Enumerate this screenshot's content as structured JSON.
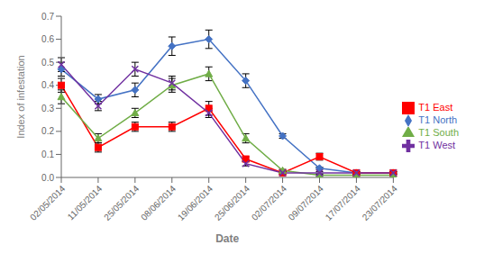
{
  "chart_data": {
    "type": "line",
    "xlabel": "Date",
    "ylabel": "Index of infestation",
    "categories": [
      "02/05/2014",
      "11/05/2014",
      "25/05/2014",
      "08/06/2014",
      "19/06/2014",
      "25/06/2014",
      "02/07/2014",
      "09/07/2014",
      "17/07/2014",
      "23/07/2014"
    ],
    "series": [
      {
        "name": "T1 North",
        "color": "#4472C4",
        "marker": "diamond",
        "values": [
          0.47,
          0.34,
          0.38,
          0.57,
          0.6,
          0.42,
          0.18,
          0.04,
          0.02,
          0.02
        ],
        "errors": [
          0.03,
          0.02,
          0.03,
          0.04,
          0.04,
          0.03,
          0.01,
          0.005,
          0.005,
          0.005
        ]
      },
      {
        "name": "T1 East",
        "color": "#FF0000",
        "marker": "square",
        "values": [
          0.4,
          0.13,
          0.22,
          0.22,
          0.3,
          0.08,
          0.02,
          0.09,
          0.02,
          0.02
        ],
        "errors": [
          0.03,
          0.02,
          0.02,
          0.02,
          0.03,
          0.01,
          0.005,
          0.015,
          0.005,
          0.005
        ]
      },
      {
        "name": "T1 South",
        "color": "#70AD47",
        "marker": "triangle",
        "values": [
          0.35,
          0.17,
          0.28,
          0.4,
          0.45,
          0.17,
          0.03,
          0.01,
          0.01,
          0.01
        ],
        "errors": [
          0.03,
          0.02,
          0.02,
          0.03,
          0.03,
          0.02,
          0.005,
          0.005,
          0.005,
          0.005
        ]
      },
      {
        "name": "T1 West",
        "color": "#7030A0",
        "marker": "x",
        "values": [
          0.49,
          0.31,
          0.47,
          0.41,
          0.28,
          0.06,
          0.02,
          0.02,
          0.02,
          0.02
        ],
        "errors": [
          0.03,
          0.02,
          0.03,
          0.03,
          0.02,
          0.01,
          0.005,
          0.005,
          0.005,
          0.005
        ]
      }
    ],
    "ylim": [
      0,
      0.7
    ],
    "yticks": [
      {
        "value": 0,
        "label": "0.0"
      },
      0.1,
      0.2,
      0.3,
      0.4,
      0.5,
      0.6,
      0.7
    ],
    "grid": false,
    "legend": "right"
  }
}
